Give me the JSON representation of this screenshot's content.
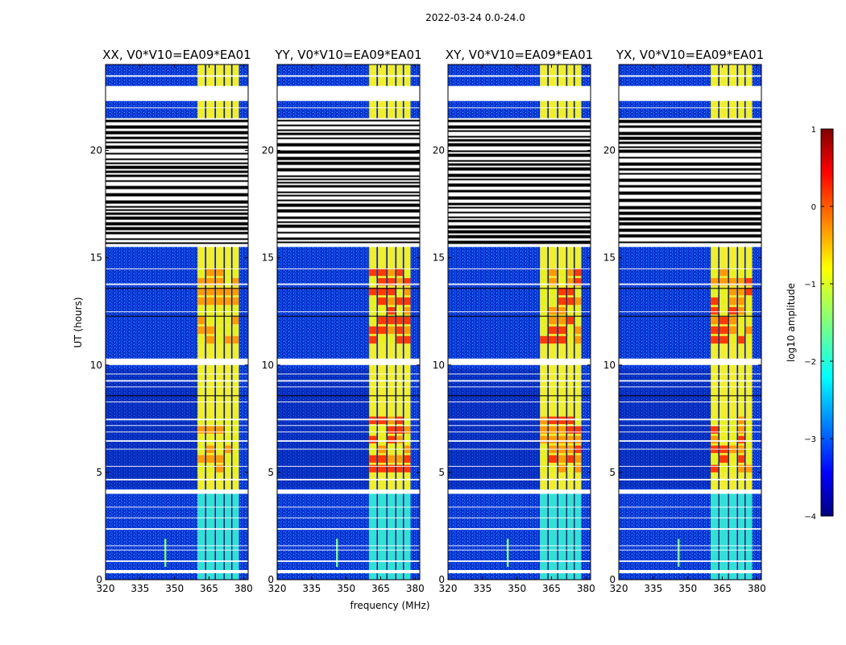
{
  "chart_data": {
    "type": "heatmap",
    "title": "2022-03-24 0.0-24.0",
    "xlabel": "frequency (MHz)",
    "ylabel": "UT (hours)",
    "xlim": [
      320,
      382
    ],
    "ylim": [
      0,
      24
    ],
    "x_ticks": [
      "320",
      "335",
      "350",
      "365",
      "380"
    ],
    "y_ticks": [
      "0",
      "5",
      "10",
      "15",
      "20"
    ],
    "panels": [
      {
        "name": "XX",
        "title": "XX, V0*V10=EA09*EA01"
      },
      {
        "name": "YY",
        "title": "YY, V0*V10=EA09*EA01"
      },
      {
        "name": "XY",
        "title": "XY, V0*V10=EA09*EA01"
      },
      {
        "name": "YX",
        "title": "YX, V0*V10=EA09*EA01"
      }
    ],
    "colorbar": {
      "label": "log10 amplitude",
      "range": [
        -4,
        1
      ],
      "ticks": [
        "1",
        "0",
        "−1",
        "−2",
        "−3",
        "−4"
      ],
      "colormap": "jet"
    },
    "signal_band_mhz": [
      360,
      378
    ],
    "rfi_channel_mhz": 346,
    "flagged_hours": [
      [
        15.5,
        21.5
      ],
      [
        4.0,
        4.2
      ],
      [
        10.0,
        10.3
      ],
      [
        0.3,
        0.45
      ],
      [
        22.3,
        23.0
      ]
    ]
  }
}
